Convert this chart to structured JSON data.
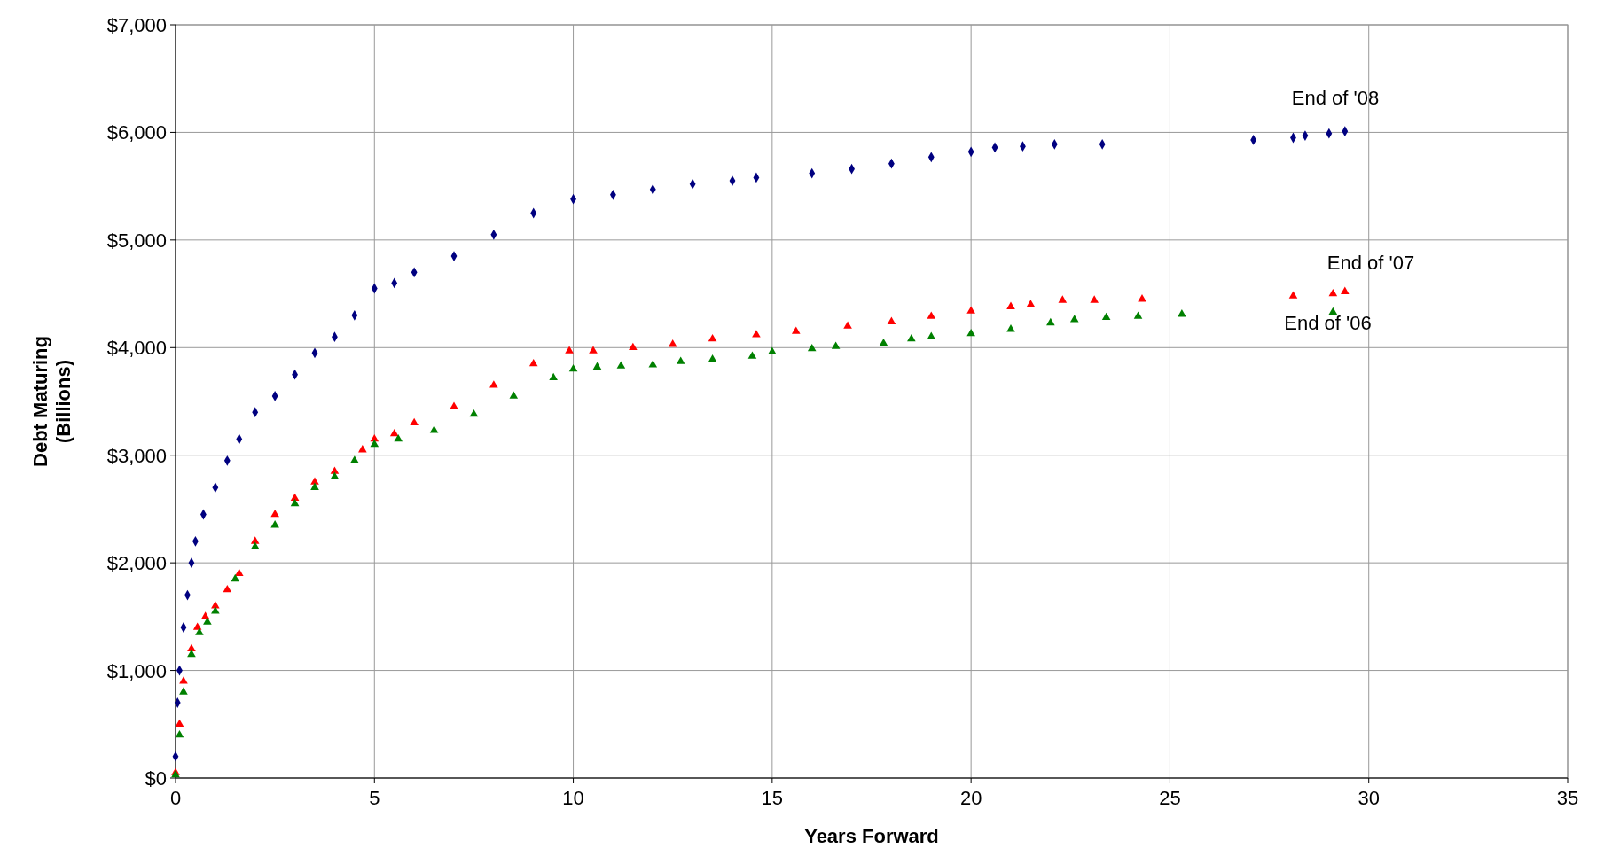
{
  "chart_data": {
    "type": "scatter",
    "xlabel": "Years Forward",
    "ylabel": "Debt Maturing\n(Billions)",
    "xlim": [
      0,
      35
    ],
    "xticks": [
      0,
      5,
      10,
      15,
      20,
      25,
      30,
      35
    ],
    "ylim": [
      0,
      7000
    ],
    "yticks": [
      {
        "value": 0,
        "label": "$0"
      },
      {
        "value": 1000,
        "label": "$1,000"
      },
      {
        "value": 2000,
        "label": "$2,000"
      },
      {
        "value": 3000,
        "label": "$3,000"
      },
      {
        "value": 4000,
        "label": "$4,000"
      },
      {
        "value": 5000,
        "label": "$5,000"
      },
      {
        "value": 6000,
        "label": "$6,000"
      },
      {
        "value": 7000,
        "label": "$7,000"
      }
    ],
    "grid": true,
    "series": [
      {
        "name": "End of '08",
        "color": "#000080",
        "marker": "diamond",
        "x": [
          0,
          0.05,
          0.1,
          0.2,
          0.3,
          0.4,
          0.5,
          0.7,
          1,
          1.3,
          1.6,
          2,
          2.5,
          3,
          3.5,
          4,
          4.5,
          5,
          5.5,
          6,
          7,
          8,
          9,
          10,
          11,
          12,
          13,
          14,
          14.6,
          16,
          17,
          18,
          19,
          20,
          20.6,
          21.3,
          22.1,
          23.3,
          27.1,
          28.1,
          28.4,
          29,
          29.4
        ],
        "values": [
          200,
          700,
          1000,
          1400,
          1700,
          2000,
          2200,
          2450,
          2700,
          2950,
          3150,
          3400,
          3550,
          3750,
          3950,
          4100,
          4300,
          4550,
          4600,
          4700,
          4850,
          5050,
          5250,
          5380,
          5420,
          5470,
          5520,
          5550,
          5580,
          5620,
          5660,
          5710,
          5770,
          5820,
          5860,
          5870,
          5890,
          5890,
          5930,
          5950,
          5970,
          5990,
          6010
        ]
      },
      {
        "name": "End of '07",
        "color": "#ff0000",
        "marker": "triangle",
        "x": [
          0,
          0.1,
          0.2,
          0.4,
          0.55,
          0.75,
          1,
          1.3,
          1.6,
          2,
          2.5,
          3,
          3.5,
          4,
          4.7,
          5,
          5.5,
          6,
          7,
          8,
          9,
          9.9,
          10.5,
          11.5,
          12.5,
          13.5,
          14.6,
          15.6,
          16.9,
          18,
          19,
          20,
          21,
          21.5,
          22.3,
          23.1,
          24.3,
          28.1,
          29.1,
          29.4
        ],
        "values": [
          50,
          500,
          900,
          1200,
          1400,
          1500,
          1600,
          1750,
          1900,
          2200,
          2450,
          2600,
          2750,
          2850,
          3050,
          3150,
          3200,
          3300,
          3450,
          3650,
          3850,
          3970,
          3970,
          4000,
          4030,
          4080,
          4120,
          4150,
          4200,
          4240,
          4290,
          4340,
          4380,
          4400,
          4440,
          4440,
          4450,
          4480,
          4500,
          4520
        ]
      },
      {
        "name": "End of '06",
        "color": "#008000",
        "marker": "triangle",
        "x": [
          0,
          0.1,
          0.2,
          0.4,
          0.6,
          0.8,
          1,
          1.5,
          2,
          2.5,
          3,
          3.5,
          4,
          4.5,
          5,
          5.6,
          6.5,
          7.5,
          8.5,
          9.5,
          10,
          10.6,
          11.2,
          12,
          12.7,
          13.5,
          14.5,
          15,
          16,
          16.6,
          17.8,
          18.5,
          19,
          20,
          21,
          22,
          22.6,
          23.4,
          24.2,
          25.3,
          29.1
        ],
        "values": [
          30,
          400,
          800,
          1150,
          1350,
          1450,
          1550,
          1850,
          2150,
          2350,
          2550,
          2700,
          2800,
          2950,
          3100,
          3150,
          3230,
          3380,
          3550,
          3720,
          3800,
          3820,
          3830,
          3840,
          3870,
          3890,
          3920,
          3960,
          3990,
          4010,
          4040,
          4080,
          4100,
          4130,
          4170,
          4230,
          4260,
          4280,
          4290,
          4310,
          4330
        ]
      }
    ]
  }
}
